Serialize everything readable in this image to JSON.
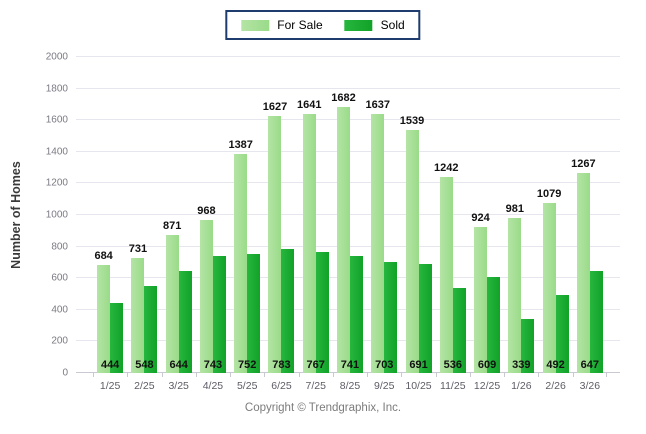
{
  "chart_data": {
    "type": "bar",
    "title": "",
    "xlabel": "",
    "ylabel": "Number of Homes",
    "ylim": [
      0,
      2000
    ],
    "ytick_step": 200,
    "grid": true,
    "legend_position": "top-center",
    "categories": [
      "1/25",
      "2/25",
      "3/25",
      "4/25",
      "5/25",
      "6/25",
      "7/25",
      "8/25",
      "9/25",
      "10/25",
      "11/25",
      "12/25",
      "1/26",
      "2/26",
      "3/26"
    ],
    "series": [
      {
        "name": "For Sale",
        "color": "#9adb89",
        "color_edge": "#b4e4a5",
        "label_position": "above",
        "values": [
          684,
          731,
          871,
          968,
          1387,
          1627,
          1641,
          1682,
          1637,
          1539,
          1242,
          924,
          981,
          1079,
          1267
        ]
      },
      {
        "name": "Sold",
        "color": "#11a228",
        "color_edge": "#27b63e",
        "label_position": "bottom-inside",
        "values": [
          444,
          548,
          644,
          743,
          752,
          783,
          767,
          741,
          703,
          691,
          536,
          609,
          339,
          492,
          647
        ]
      }
    ]
  },
  "legend": {
    "border_color": "#1e3c6e"
  },
  "footer": {
    "copyright": "Copyright © Trendgraphix, Inc."
  }
}
